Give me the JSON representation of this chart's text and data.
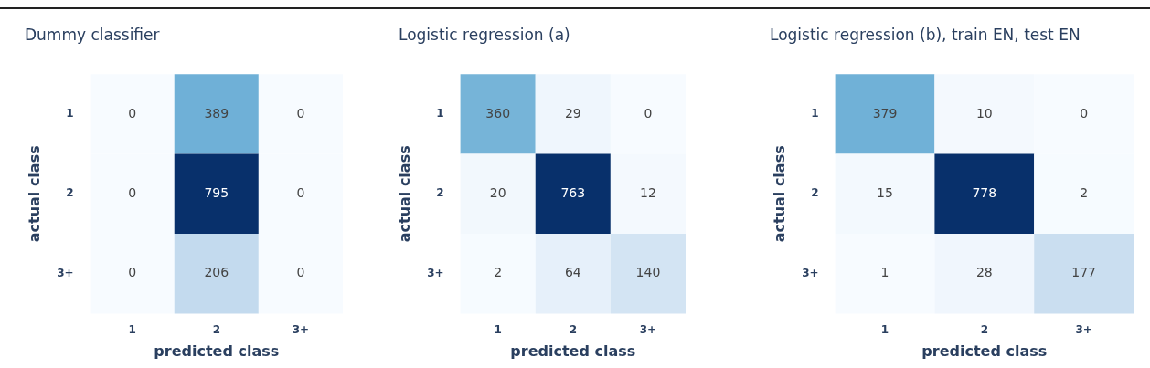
{
  "chart_data": [
    {
      "type": "heatmap",
      "title": "Dummy classifier",
      "xlabel": "predicted class",
      "ylabel": "actual class",
      "categories": [
        "1",
        "2",
        "3+"
      ],
      "y_categories": [
        "1",
        "2",
        "3+"
      ],
      "data_labels": true,
      "cells": [
        [
          0,
          389,
          0
        ],
        [
          0,
          795,
          0
        ],
        [
          0,
          206,
          0
        ]
      ]
    },
    {
      "type": "heatmap",
      "title": "Logistic regression (a)",
      "xlabel": "predicted class",
      "ylabel": "actual class",
      "categories": [
        "1",
        "2",
        "3+"
      ],
      "y_categories": [
        "1",
        "2",
        "3+"
      ],
      "data_labels": true,
      "cells": [
        [
          360,
          29,
          0
        ],
        [
          20,
          763,
          12
        ],
        [
          2,
          64,
          140
        ]
      ]
    },
    {
      "type": "heatmap",
      "title": "Logistic regression (b), train EN, test EN",
      "xlabel": "predicted class",
      "ylabel": "actual class",
      "categories": [
        "1",
        "2",
        "3+"
      ],
      "y_categories": [
        "1",
        "2",
        "3+"
      ],
      "data_labels": true,
      "cells": [
        [
          379,
          10,
          0
        ],
        [
          15,
          778,
          2
        ],
        [
          1,
          28,
          177
        ]
      ]
    }
  ]
}
